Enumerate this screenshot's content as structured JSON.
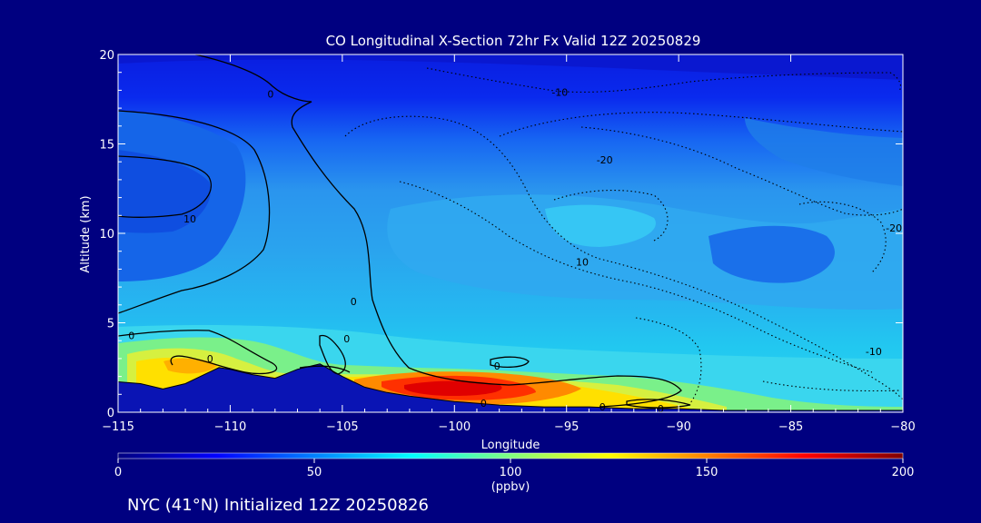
{
  "chart_data": {
    "type": "heatmap",
    "title": "CO Longitudinal X-Section 72hr  Fx Valid 12Z 20250829",
    "xlabel": "Longitude",
    "ylabel": "Altitude (km)",
    "xlim": [
      -115,
      -80
    ],
    "ylim": [
      0,
      20
    ],
    "x_ticks": [
      -115,
      -110,
      -105,
      -100,
      -95,
      -90,
      -85,
      -80
    ],
    "x_tick_labels": [
      "−115",
      "−110",
      "−105",
      "−100",
      "−95",
      "−90",
      "−85",
      "−80"
    ],
    "y_ticks": [
      0,
      5,
      10,
      15,
      20
    ],
    "y_tick_labels": [
      "0",
      "5",
      "10",
      "15",
      "20"
    ],
    "colorbar": {
      "min": 0,
      "max": 200,
      "ticks": [
        0,
        50,
        100,
        150,
        200
      ],
      "tick_labels": [
        "0",
        "50",
        "100",
        "150",
        "200"
      ],
      "unit": "(ppbv)",
      "colors": [
        "#000080",
        "#0000ff",
        "#0080ff",
        "#00ffff",
        "#80ff80",
        "#ffff00",
        "#ff8000",
        "#ff0000",
        "#800000"
      ]
    },
    "field_description": "CO mixing ratio (ppbv) by longitude and altitude; high values (150-190) near surface from -103 to -96, low values (~20-30) above 17 km",
    "surface_terrain": {
      "longitude": [
        -115,
        -114,
        -113,
        -112,
        -111,
        -110.5,
        -110,
        -109,
        -108,
        -107,
        -106,
        -105,
        -104,
        -103,
        -102,
        -100,
        -98,
        -96,
        -94,
        -92,
        -90,
        -88,
        -86,
        -84,
        -82,
        -80
      ],
      "altitude_km": [
        1.7,
        1.6,
        1.3,
        1.6,
        2.2,
        2.5,
        2.4,
        2.1,
        1.9,
        2.4,
        2.7,
        2.0,
        1.4,
        1.1,
        0.9,
        0.6,
        0.4,
        0.3,
        0.3,
        0.2,
        0.2,
        0.1,
        0.1,
        0.1,
        0.1,
        0.1
      ]
    },
    "contour_labels": [
      {
        "text": "0",
        "lon": -108.2,
        "alt": 17.8
      },
      {
        "text": "10",
        "lon": -111.8,
        "alt": 10.8
      },
      {
        "text": "-10",
        "lon": -95.3,
        "alt": 17.9
      },
      {
        "text": "-20",
        "lon": -93.3,
        "alt": 14.1
      },
      {
        "text": "10",
        "lon": -94.3,
        "alt": 8.4
      },
      {
        "text": "-20",
        "lon": -80.4,
        "alt": 10.3
      },
      {
        "text": "-10",
        "lon": -81.3,
        "alt": 3.4
      },
      {
        "text": "0",
        "lon": -104.5,
        "alt": 6.2
      },
      {
        "text": "0",
        "lon": -114.4,
        "alt": 4.3
      },
      {
        "text": "0",
        "lon": -110.9,
        "alt": 3.0
      },
      {
        "text": "0",
        "lon": -104.8,
        "alt": 4.1
      },
      {
        "text": "0",
        "lon": -98.1,
        "alt": 2.6
      },
      {
        "text": "0",
        "lon": -98.7,
        "alt": 0.5
      },
      {
        "text": "0",
        "lon": -93.4,
        "alt": 0.3
      },
      {
        "text": "0",
        "lon": -90.8,
        "alt": 0.2
      }
    ]
  },
  "footer_text": "NYC (41°N) Initialized 12Z 20250826"
}
